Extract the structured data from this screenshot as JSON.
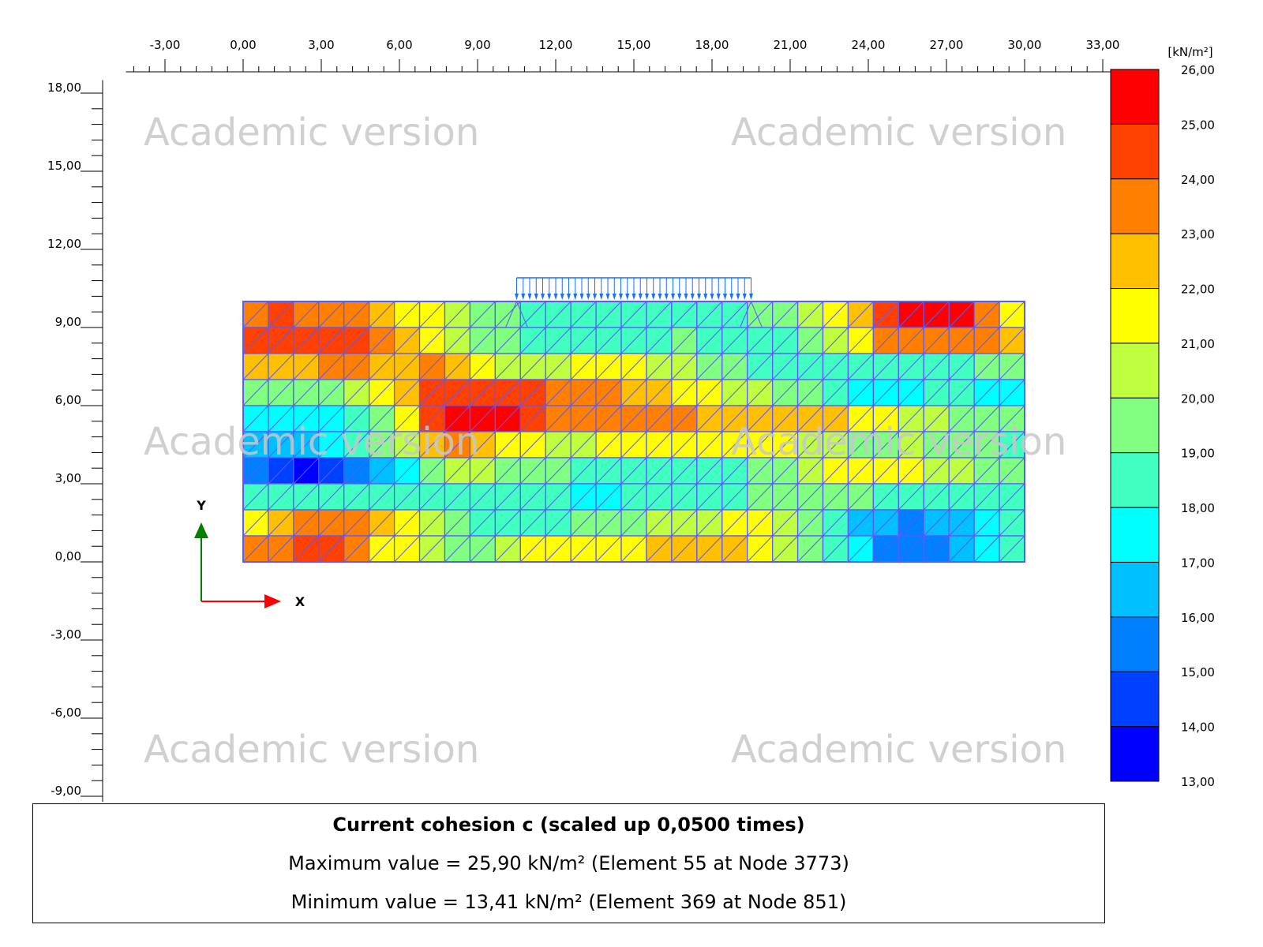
{
  "chart_data": {
    "type": "heatmap",
    "x_ticks": [
      "-3,00",
      "0,00",
      "3,00",
      "6,00",
      "9,00",
      "12,00",
      "15,00",
      "18,00",
      "21,00",
      "24,00",
      "27,00",
      "30,00",
      "33,00"
    ],
    "x_tick_values": [
      -3,
      0,
      3,
      6,
      9,
      12,
      15,
      18,
      21,
      24,
      27,
      30,
      33
    ],
    "y_ticks": [
      "18,00",
      "15,00",
      "12,00",
      "9,00",
      "6,00",
      "3,00",
      "0,00",
      "-3,00",
      "-6,00",
      "-9,00"
    ],
    "y_tick_values": [
      18,
      15,
      12,
      9,
      6,
      3,
      0,
      -3,
      -6,
      -9
    ],
    "x_range": [
      -4.5,
      33.5
    ],
    "y_range": [
      -9,
      18.5
    ],
    "domain_x": [
      0,
      30
    ],
    "domain_y": [
      0,
      10
    ],
    "load_x": [
      10.5,
      19.5
    ],
    "colorbar": {
      "unit": "[kN/m²]",
      "labels": [
        "26,00",
        "25,00",
        "24,00",
        "23,00",
        "22,00",
        "21,00",
        "20,00",
        "19,00",
        "18,00",
        "17,00",
        "16,00",
        "15,00",
        "14,00",
        "13,00"
      ],
      "values": [
        26,
        25,
        24,
        23,
        22,
        21,
        20,
        19,
        18,
        17,
        16,
        15,
        14,
        13
      ],
      "band_colors": [
        "#ff0000",
        "#ff4000",
        "#ff8000",
        "#ffc000",
        "#ffff00",
        "#c0ff40",
        "#80ff80",
        "#40ffc0",
        "#00ffff",
        "#00c0ff",
        "#0080ff",
        "#0040ff",
        "#0000ff"
      ]
    },
    "cells": [
      [
        23.5,
        24.5,
        24,
        23.5,
        23.5,
        22.5,
        21.5,
        21.5,
        20.5,
        19.5,
        19.5,
        18.5,
        18.5,
        18.5,
        18.5,
        18.5,
        18.5,
        18.5,
        18.5,
        18.5,
        19.5,
        19.5,
        20.5,
        21.5,
        22.5,
        24.5,
        25.5,
        25.5,
        25.5,
        23.5,
        21.5
      ],
      [
        24.5,
        24.5,
        24.5,
        24.5,
        24.5,
        23.5,
        22.5,
        21.5,
        20.5,
        19.5,
        19.5,
        18.5,
        18.5,
        18.5,
        18.5,
        18.5,
        18.5,
        19.5,
        18.5,
        18.5,
        18.5,
        18.5,
        19.5,
        20.5,
        21.5,
        23.5,
        23.5,
        23.5,
        23.5,
        23.5,
        22.5
      ],
      [
        22.5,
        22.5,
        22.5,
        23.5,
        23.5,
        22.5,
        22.5,
        23.5,
        22.5,
        21.5,
        20.5,
        20.5,
        20.5,
        21.5,
        21.5,
        21.5,
        20.5,
        20.5,
        19.5,
        19.5,
        18.5,
        18.5,
        18.5,
        18.5,
        18.5,
        18.5,
        18.5,
        18.5,
        18.5,
        19.5,
        19.5
      ],
      [
        19.5,
        19.5,
        19.5,
        19.5,
        20.5,
        21.5,
        22.5,
        24.5,
        24.5,
        24.5,
        24.5,
        24.5,
        23.5,
        23.5,
        23.5,
        22.5,
        22.5,
        21.5,
        21.5,
        20.5,
        20.5,
        19.5,
        19.5,
        18.5,
        17.5,
        17.5,
        17.5,
        18.5,
        18.5,
        17.5,
        17.5
      ],
      [
        17.5,
        17.5,
        17.5,
        17.5,
        18.5,
        19.5,
        21.5,
        24.5,
        25.5,
        25.5,
        25.5,
        24.5,
        23.5,
        23.5,
        23.5,
        23.5,
        23.5,
        23.5,
        22.5,
        22.5,
        22.5,
        22.5,
        22.5,
        22.5,
        21.5,
        21.5,
        20.5,
        20.5,
        19.5,
        19.5,
        19.5
      ],
      [
        16.5,
        16.5,
        16.5,
        17.5,
        18.5,
        19.5,
        20.5,
        22.5,
        23.5,
        22.5,
        21.5,
        21.5,
        20.5,
        20.5,
        21.5,
        21.5,
        21.5,
        21.5,
        21.5,
        21.5,
        21.5,
        21.5,
        20.5,
        20.5,
        19.5,
        19.5,
        20.5,
        19.5,
        19.5,
        19.5,
        18.5
      ],
      [
        15.5,
        14.5,
        13.5,
        14.5,
        15.5,
        16.5,
        17.5,
        19.5,
        20.5,
        20.5,
        19.5,
        19.5,
        19.5,
        18.5,
        18.5,
        18.5,
        18.5,
        18.5,
        18.5,
        18.5,
        19.5,
        19.5,
        20.5,
        21.5,
        21.5,
        21.5,
        21.5,
        20.5,
        20.5,
        19.5,
        19.5
      ],
      [
        18.5,
        18.5,
        18.5,
        18.5,
        18.5,
        18.5,
        18.5,
        18.5,
        18.5,
        18.5,
        18.5,
        18.5,
        18.5,
        17.5,
        17.5,
        18.5,
        18.5,
        18.5,
        18.5,
        18.5,
        19.5,
        19.5,
        19.5,
        19.5,
        19.5,
        18.5,
        18.5,
        18.5,
        18.5,
        18.5,
        18.5
      ],
      [
        21.5,
        22.5,
        23.5,
        23.5,
        23.5,
        22.5,
        21.5,
        20.5,
        19.5,
        18.5,
        18.5,
        18.5,
        18.5,
        19.5,
        19.5,
        19.5,
        20.5,
        20.5,
        20.5,
        21.5,
        21.5,
        20.5,
        19.5,
        18.5,
        16.5,
        16.5,
        15.5,
        16.5,
        16.5,
        17.5,
        18.5
      ],
      [
        23.5,
        23.5,
        24.5,
        24.5,
        23.5,
        21.5,
        21.5,
        20.5,
        19.5,
        19.5,
        20.5,
        21.5,
        21.5,
        21.5,
        21.5,
        21.5,
        22.5,
        22.5,
        22.5,
        22.5,
        21.5,
        20.5,
        19.5,
        18.5,
        17.5,
        15.5,
        15.5,
        15.5,
        16.5,
        17.5,
        18.5
      ]
    ]
  },
  "watermark_text": "Academic version",
  "axes_labels": {
    "x": "X",
    "y": "Y"
  },
  "info": {
    "title": "Current cohesion c (scaled up 0,0500 times)",
    "max_line": "Maximum value = 25,90 kN/m² (Element 55 at Node 3773)",
    "min_line": "Minimum value = 13,41 kN/m² (Element 369 at Node 851)"
  },
  "colors": {
    "mesh_line": "#5a5aff",
    "load_arrow": "#1a6fff",
    "x_axis": "#ff0000",
    "y_axis": "#008000"
  }
}
